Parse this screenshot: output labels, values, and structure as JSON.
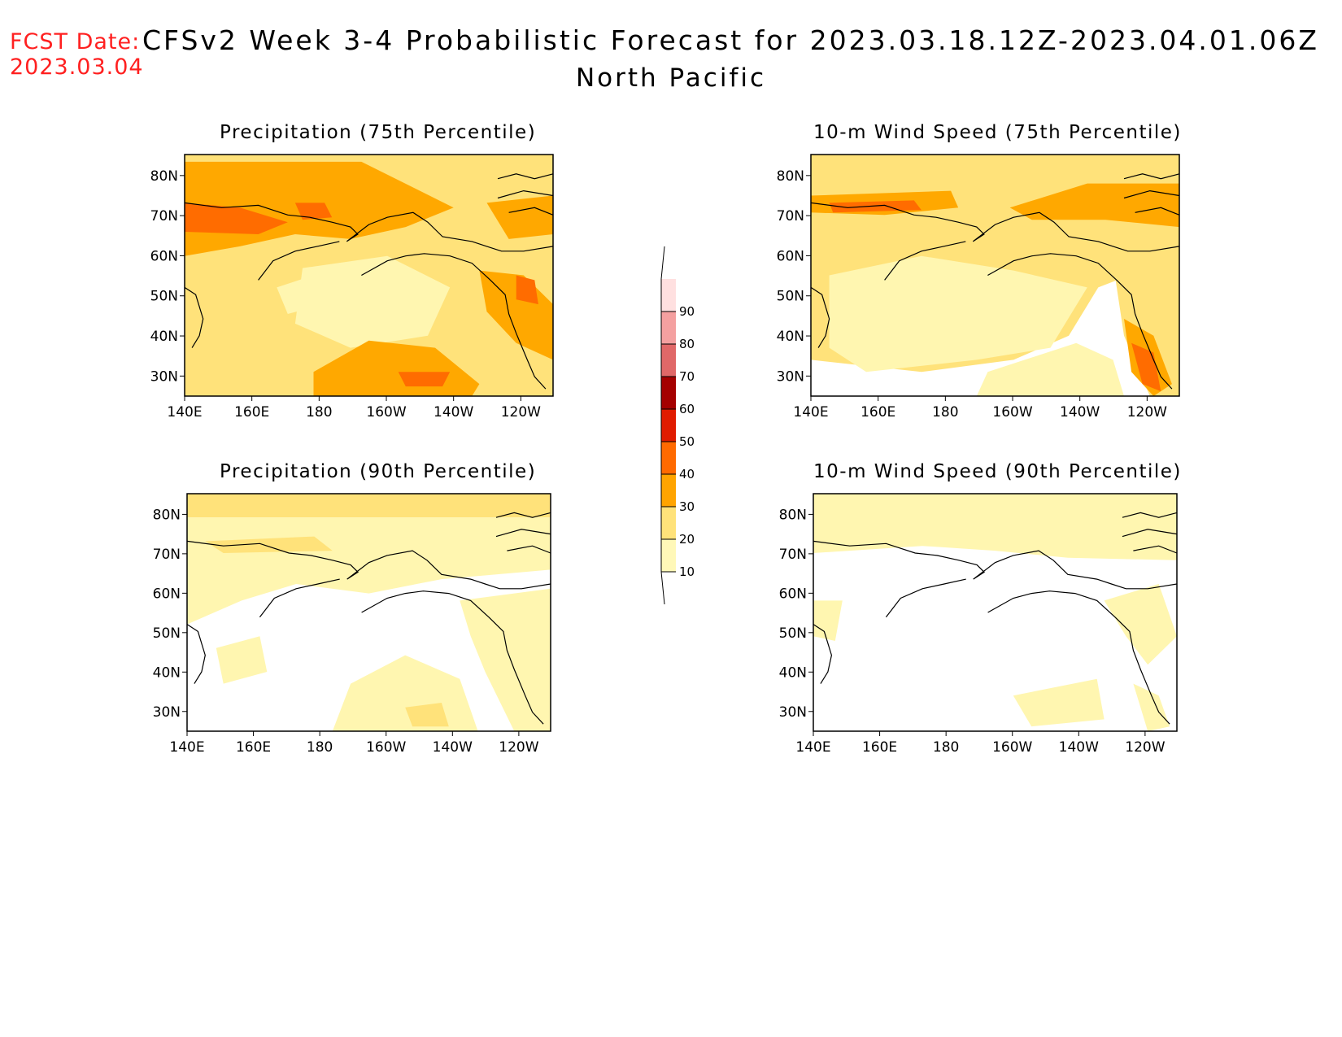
{
  "header": {
    "fcst_label": "FCST Date:",
    "fcst_date": "2023.03.04",
    "title": "CFSv2 Week 3-4 Probabilistic Forecast for 2023.03.18.12Z-2023.04.01.06Z",
    "region": "North Pacific"
  },
  "axes": {
    "lon_labels": [
      "140E",
      "160E",
      "180",
      "160W",
      "140W",
      "120W"
    ],
    "lat_labels": [
      "80N",
      "70N",
      "60N",
      "50N",
      "40N",
      "30N"
    ]
  },
  "panels": [
    {
      "id": "precip-75",
      "title": "Precipitation (75th Percentile)",
      "level": "high"
    },
    {
      "id": "wind-75",
      "title": "10-m Wind Speed (75th Percentile)",
      "level": "medium"
    },
    {
      "id": "precip-90",
      "title": "Precipitation (90th Percentile)",
      "level": "low"
    },
    {
      "id": "wind-90",
      "title": "10-m Wind Speed (90th Percentile)",
      "level": "lowest"
    }
  ],
  "colorbar": {
    "labels": [
      "10",
      "20",
      "30",
      "40",
      "50",
      "60",
      "70",
      "80",
      "90"
    ],
    "colors": [
      "#fff8b8",
      "#ffe27a",
      "#ffa400",
      "#ff6a00",
      "#e01b00",
      "#a50000",
      "#e06868",
      "#f4a0a0",
      "#ffe0e0"
    ]
  },
  "map_colors": {
    "c10": "#fff6b0",
    "c20": "#ffe27a",
    "c30": "#ffa800",
    "c40": "#ff6c00",
    "coast": "#000000"
  }
}
